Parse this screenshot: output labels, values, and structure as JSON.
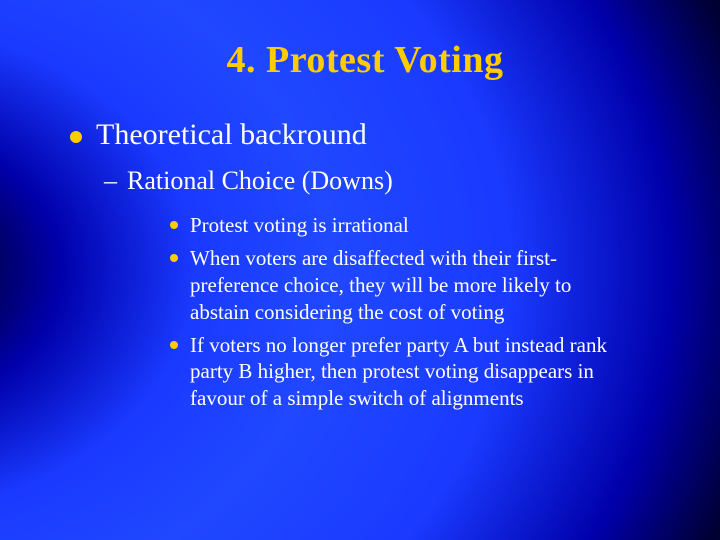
{
  "colors": {
    "title_color": "#ffcc00",
    "body_color": "#ffffff",
    "bullet_color": "#ffcc00",
    "background_gradient": [
      "#000000",
      "#000033",
      "#0000aa",
      "#1a3aff",
      "#2048ff"
    ]
  },
  "typography": {
    "family": "Times New Roman",
    "title_size_pt": 38,
    "level1_size_pt": 30,
    "level2_size_pt": 26,
    "level3_size_pt": 21
  },
  "slide": {
    "title": "4. Protest Voting",
    "level1": {
      "text": "Theoretical backround"
    },
    "level2": {
      "text": "Rational Choice (Downs)"
    },
    "level3": [
      {
        "text": "Protest voting is irrational"
      },
      {
        "text": "When voters are disaffected with their first-preference choice, they will be more likely to abstain considering the cost of voting"
      },
      {
        "text": "If voters no longer prefer party A but instead rank party B higher, then protest voting disappears in favour of a simple switch of alignments"
      }
    ]
  }
}
